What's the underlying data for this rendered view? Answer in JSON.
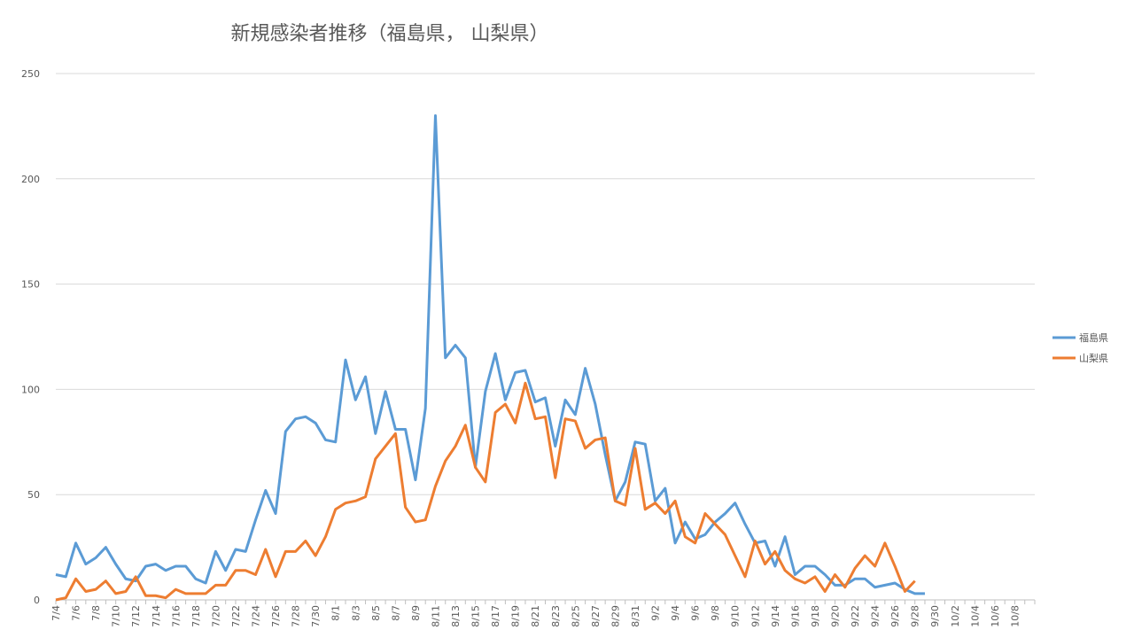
{
  "chart_data": {
    "type": "line",
    "title": "新規感染者推移（福島県， 山梨県）",
    "categories": [
      "7/4",
      null,
      "7/6",
      null,
      "7/8",
      null,
      "7/10",
      null,
      "7/12",
      null,
      "7/14",
      null,
      "7/16",
      null,
      "7/18",
      null,
      "7/20",
      null,
      "7/22",
      null,
      "7/24",
      null,
      "7/26",
      null,
      "7/28",
      null,
      "7/30",
      null,
      "8/1",
      null,
      "8/3",
      null,
      "8/5",
      null,
      "8/7",
      null,
      "8/9",
      null,
      "8/11",
      null,
      "8/13",
      null,
      "8/15",
      null,
      "8/17",
      null,
      "8/19",
      null,
      "8/21",
      null,
      "8/23",
      null,
      "8/25",
      null,
      "8/27",
      null,
      "8/29",
      null,
      "8/31",
      null,
      "9/2",
      null,
      "9/4",
      null,
      "9/6",
      null,
      "9/8",
      null,
      "9/10",
      null,
      "9/12",
      null,
      "9/14",
      null,
      "9/16",
      null,
      "9/18",
      null,
      "9/20",
      null,
      "9/22",
      null,
      "9/24",
      null,
      "9/26",
      null,
      "9/28",
      null,
      "9/30",
      null,
      "10/2",
      null,
      "10/4",
      null,
      "10/6",
      null,
      "10/8",
      null,
      null
    ],
    "series": [
      {
        "name": "福島県",
        "color": "#5b9bd5",
        "values": [
          12,
          11,
          27,
          17,
          20,
          25,
          17,
          10,
          9,
          16,
          17,
          14,
          16,
          16,
          10,
          8,
          23,
          14,
          24,
          23,
          38,
          52,
          41,
          80,
          86,
          87,
          84,
          76,
          75,
          114,
          95,
          106,
          79,
          99,
          81,
          81,
          57,
          91,
          230,
          115,
          121,
          115,
          63,
          99,
          117,
          95,
          108,
          109,
          94,
          96,
          73,
          95,
          88,
          110,
          93,
          69,
          47,
          56,
          75,
          74,
          47,
          53,
          27,
          37,
          29,
          31,
          37,
          41,
          46,
          36,
          27,
          28,
          16,
          30,
          12,
          16,
          16,
          12,
          7,
          7,
          10,
          10,
          6,
          7,
          8,
          5,
          3,
          3,
          null,
          null,
          null,
          null,
          null,
          null,
          null,
          null,
          null,
          null,
          null
        ]
      },
      {
        "name": "山梨県",
        "color": "#ed7d31",
        "values": [
          0,
          1,
          10,
          4,
          5,
          9,
          3,
          4,
          11,
          2,
          2,
          1,
          5,
          3,
          3,
          3,
          7,
          7,
          14,
          14,
          12,
          24,
          11,
          23,
          23,
          28,
          21,
          30,
          43,
          46,
          47,
          49,
          67,
          73,
          79,
          44,
          37,
          38,
          54,
          66,
          73,
          83,
          63,
          56,
          89,
          93,
          84,
          103,
          86,
          87,
          58,
          86,
          85,
          72,
          76,
          77,
          47,
          45,
          72,
          43,
          46,
          41,
          47,
          30,
          27,
          41,
          36,
          31,
          21,
          11,
          28,
          17,
          23,
          14,
          10,
          8,
          11,
          4,
          12,
          6,
          15,
          21,
          16,
          27,
          16,
          4,
          9,
          null,
          null,
          null,
          null,
          null,
          null,
          null,
          null,
          null,
          null,
          null,
          null
        ]
      }
    ],
    "ylim": [
      0,
      250
    ],
    "yticks": [
      0,
      50,
      100,
      150,
      200,
      250
    ],
    "grid": true,
    "legend": "right"
  }
}
